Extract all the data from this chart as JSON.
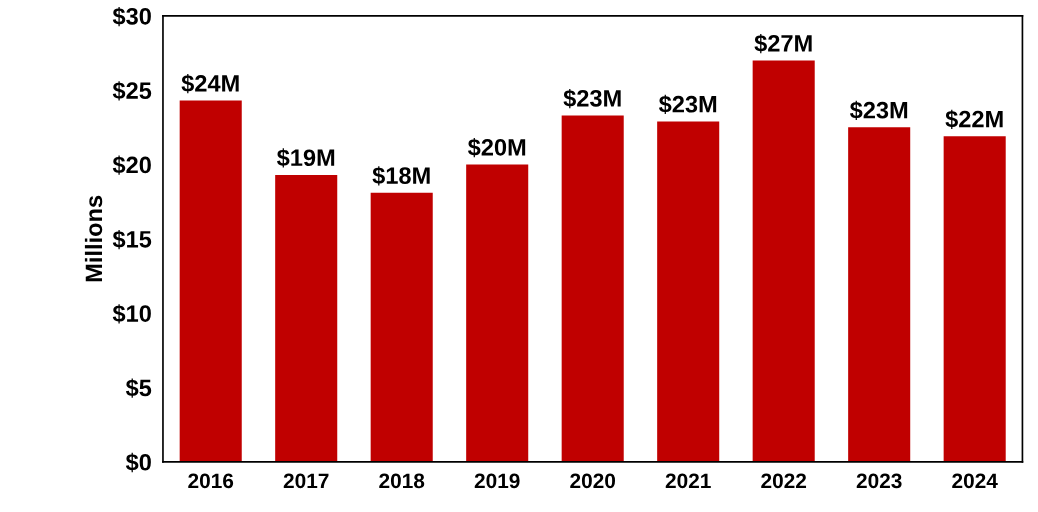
{
  "chart_data": {
    "type": "bar",
    "ylabel": "Millions",
    "categories": [
      "2016",
      "2017",
      "2018",
      "2019",
      "2020",
      "2021",
      "2022",
      "2023",
      "2024"
    ],
    "values": [
      24.3,
      19.3,
      18.1,
      20.0,
      23.3,
      22.9,
      27.0,
      22.5,
      21.9
    ],
    "value_labels": [
      "$24M",
      "$19M",
      "$18M",
      "$20M",
      "$23M",
      "$23M",
      "$27M",
      "$23M",
      "$22M"
    ],
    "color": "#c00000",
    "ylim": [
      0,
      30
    ],
    "yticks": [
      {
        "value": 0,
        "label": "$0"
      },
      {
        "value": 5,
        "label": "$5"
      },
      {
        "value": 10,
        "label": "$10"
      },
      {
        "value": 15,
        "label": "$15"
      },
      {
        "value": 20,
        "label": "$20"
      },
      {
        "value": 25,
        "label": "$25"
      },
      {
        "value": 30,
        "label": "$30"
      }
    ],
    "grid": false,
    "legend": false
  }
}
